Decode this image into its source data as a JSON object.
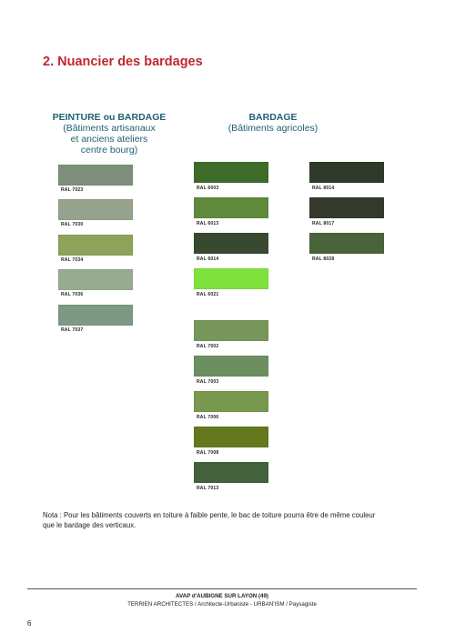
{
  "title": "2. Nuancier des bardages",
  "headings": {
    "left": {
      "main": "PEINTURE ou BARDAGE",
      "sub1": "(Bâtiments artisanaux",
      "sub2": "et anciens ateliers",
      "sub3": "centre bourg)"
    },
    "right": {
      "main": "BARDAGE",
      "sub1": "(Bâtiments agricoles)"
    }
  },
  "swatches": {
    "left": [
      {
        "label": "RAL 7023",
        "color": "#7d8f7a"
      },
      {
        "label": "RAL 7030",
        "color": "#95a38c"
      },
      {
        "label": "RAL 7034",
        "color": "#8fa25a"
      },
      {
        "label": "RAL 7036",
        "color": "#97ab93"
      },
      {
        "label": "RAL 7037",
        "color": "#7b9983"
      }
    ],
    "middle": [
      {
        "label": "RAL 6003",
        "color": "#3d6b2a"
      },
      {
        "label": "RAL 6013",
        "color": "#5f8a3c"
      },
      {
        "label": "RAL 6014",
        "color": "#374a30"
      },
      {
        "label": "RAL 6021",
        "color": "#7fe23c"
      },
      {
        "label": "RAL 7002",
        "color": "#77975a"
      },
      {
        "label": "RAL 7003",
        "color": "#6b8f61"
      },
      {
        "label": "RAL 7006",
        "color": "#78984f"
      },
      {
        "label": "RAL 7008",
        "color": "#64781e"
      },
      {
        "label": "RAL 7013",
        "color": "#43613d"
      }
    ],
    "right": [
      {
        "label": "RAL 8014",
        "color": "#2f3a2a"
      },
      {
        "label": "RAL 8017",
        "color": "#343a2c"
      },
      {
        "label": "RAL 8028",
        "color": "#49643a"
      }
    ]
  },
  "nota": {
    "line1": "Nota : Pour les bâtiments couverts en toiture à faible pente, le bac de toiture pourra être de même couleur",
    "line2": "que le bardage des verticaux."
  },
  "footer": {
    "line1": "AVAP d'AUBIGNE SUR LAYON (49)",
    "line2": "TERRIEN ARCHITECTES / Architecte-Urbaniste  -  URBAN'ISM / Paysagiste",
    "page_number": "6"
  }
}
